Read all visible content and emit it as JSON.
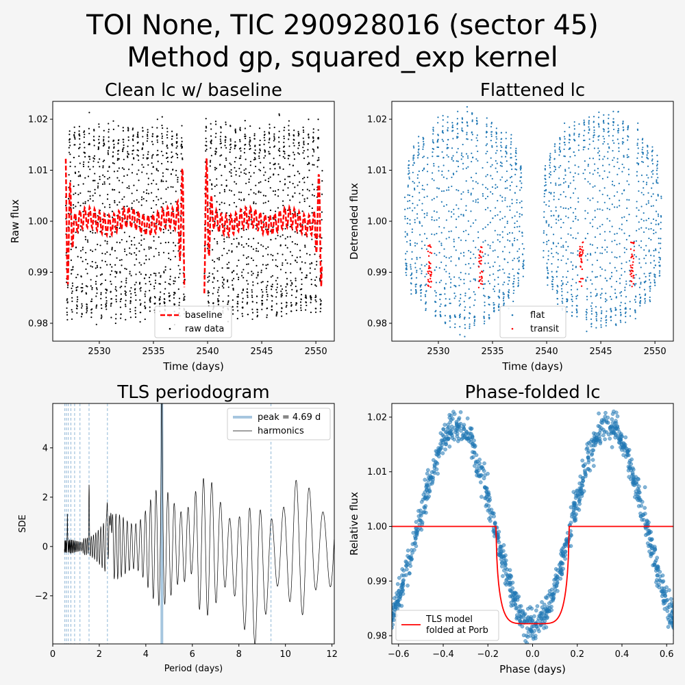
{
  "figure": {
    "title_line1": "TOI None, TIC 290928016 (sector 45)",
    "title_line2": "Method gp, squared_exp kernel"
  },
  "chart_data": [
    {
      "type": "scatter",
      "title": "Clean lc w/ baseline",
      "xlabel": "Time (days)",
      "ylabel": "Raw flux",
      "xlim": [
        2525.7,
        2551.7
      ],
      "ylim": [
        0.9765,
        1.0235
      ],
      "xticks": [
        2530,
        2535,
        2540,
        2545,
        2550
      ],
      "yticks": [
        0.98,
        0.99,
        1.0,
        1.01,
        1.02
      ],
      "ytick_labels": [
        "0.98",
        "0.99",
        "1.00",
        "1.01",
        "1.02"
      ],
      "legend": {
        "placement": "lower-center",
        "entries": [
          "baseline",
          "raw data"
        ]
      },
      "series": [
        {
          "name": "raw data",
          "kind": "scatter",
          "color": "#000000",
          "segments": [
            [
              2526.9,
              2537.9
            ],
            [
              2539.7,
              2550.6
            ]
          ],
          "amplitude": 0.0185,
          "period_days": 0.45
        },
        {
          "name": "baseline",
          "kind": "dashed-line",
          "color": "#ff0000",
          "level": 1.0
        }
      ]
    },
    {
      "type": "scatter",
      "title": "Flattened lc",
      "xlabel": "Time (days)",
      "ylabel": "Detrended flux",
      "xlim": [
        2525.7,
        2551.7
      ],
      "ylim": [
        0.9765,
        1.0235
      ],
      "xticks": [
        2530,
        2535,
        2540,
        2545,
        2550
      ],
      "yticks": [
        0.98,
        0.99,
        1.0,
        1.01,
        1.02
      ],
      "ytick_labels": [
        "0.98",
        "0.99",
        "1.00",
        "1.01",
        "1.02"
      ],
      "legend": {
        "placement": "lower-right",
        "entries": [
          "flat",
          "transit"
        ]
      },
      "series": [
        {
          "name": "flat",
          "kind": "scatter",
          "color": "#1f77b4",
          "segments": [
            [
              2526.9,
              2537.9
            ],
            [
              2539.7,
              2550.6
            ]
          ]
        },
        {
          "name": "transit",
          "kind": "scatter",
          "color": "#ff0000",
          "centers": [
            2529.2,
            2533.9,
            2543.2,
            2547.9
          ],
          "half_width": 0.18
        }
      ]
    },
    {
      "type": "line",
      "title": "TLS periodogram",
      "xlabel": "Period (days)",
      "ylabel": "SDE",
      "xlim": [
        0,
        12.1
      ],
      "ylim": [
        -3.95,
        5.8
      ],
      "xticks": [
        0,
        2,
        4,
        6,
        8,
        10,
        12
      ],
      "yticks": [
        -2,
        0,
        2,
        4
      ],
      "ytick_labels": [
        "−2",
        "0",
        "2",
        "4"
      ],
      "legend": {
        "placement": "upper-right",
        "entries": [
          "peak = 4.69 d",
          "harmonics"
        ]
      },
      "peak_period": 4.69,
      "peak_sde": 5.4,
      "harmonic_periods": [
        0.52,
        0.59,
        0.67,
        0.78,
        0.94,
        1.17,
        1.56,
        2.35,
        9.38
      ],
      "series": [
        {
          "name": "harmonics",
          "kind": "line",
          "color": "#000000"
        }
      ]
    },
    {
      "type": "scatter",
      "title": "Phase-folded lc",
      "xlabel": "Phase (days)",
      "ylabel": "Relative flux",
      "xlim": [
        -0.63,
        0.63
      ],
      "ylim": [
        0.9785,
        1.0225
      ],
      "xticks": [
        -0.6,
        -0.4,
        -0.2,
        0.0,
        0.2,
        0.4,
        0.6
      ],
      "xtick_labels": [
        "−0.6",
        "−0.4",
        "−0.2",
        "0.0",
        "0.2",
        "0.4",
        "0.6"
      ],
      "yticks": [
        0.98,
        0.99,
        1.0,
        1.01,
        1.02
      ],
      "ytick_labels": [
        "0.98",
        "0.99",
        "1.00",
        "1.01",
        "1.02"
      ],
      "legend": {
        "placement": "lower-left",
        "entries": [
          "TLS model\nfolded at Porb"
        ]
      },
      "transit_depth": 0.0178,
      "transit_half_duration": 0.163,
      "series": [
        {
          "name": "phase-folded flux",
          "kind": "scatter",
          "color": "#1f77b4",
          "amplitude": 0.0185,
          "period_days": 0.68
        },
        {
          "name": "TLS model folded at Porb",
          "kind": "line",
          "color": "#ff0000"
        }
      ]
    }
  ]
}
